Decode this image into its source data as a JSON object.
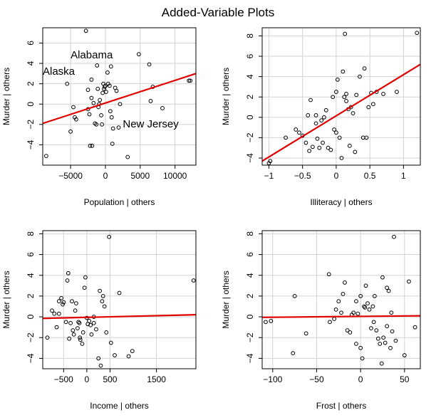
{
  "figure": {
    "title": "Added-Variable Plots"
  },
  "chart_data": [
    {
      "type": "scatter",
      "xlabel": "Population | others",
      "ylabel": "Murder  | others",
      "xlim": [
        -9000,
        13000
      ],
      "ylim": [
        -6,
        7.5
      ],
      "xticks": [
        -5000,
        0,
        5000,
        10000
      ],
      "yticks": [
        -4,
        -2,
        0,
        2,
        4,
        6
      ],
      "grid": true,
      "fit_line": {
        "color": "#e00000",
        "x": [
          -9000,
          13000
        ],
        "y": [
          -1.9,
          3.0
        ]
      },
      "annotations": [
        {
          "text": "Alabama",
          "x": -5000,
          "y": 4.5
        },
        {
          "text": "Alaska",
          "x": -9000,
          "y": 2.9
        },
        {
          "text": "New Jersey",
          "x": 2500,
          "y": -2.3
        }
      ],
      "points": [
        [
          -8500,
          -5.1
        ],
        [
          -5500,
          2.0
        ],
        [
          -5000,
          -2.7
        ],
        [
          -4600,
          -0.3
        ],
        [
          -4400,
          -1.3
        ],
        [
          -4200,
          -1.5
        ],
        [
          -2800,
          7.2
        ],
        [
          -2500,
          -0.5
        ],
        [
          -2300,
          -1.0
        ],
        [
          -2200,
          -4.1
        ],
        [
          -2000,
          2.4
        ],
        [
          -1900,
          -4.1
        ],
        [
          -1700,
          0.1
        ],
        [
          -1500,
          -1.9
        ],
        [
          -1200,
          3.8
        ],
        [
          -1100,
          1.5
        ],
        [
          -1000,
          -0.3
        ],
        [
          -900,
          0.0
        ],
        [
          -800,
          0.4
        ],
        [
          -600,
          -1.1
        ],
        [
          -500,
          -2.0
        ],
        [
          -400,
          1.1
        ],
        [
          -300,
          2.0
        ],
        [
          -200,
          1.5
        ],
        [
          -100,
          1.7
        ],
        [
          0,
          1.8
        ],
        [
          100,
          1.2
        ],
        [
          300,
          3.1
        ],
        [
          400,
          2.0
        ],
        [
          600,
          1.8
        ],
        [
          700,
          -0.7
        ],
        [
          800,
          3.7
        ],
        [
          900,
          -1.3
        ],
        [
          1000,
          -3.9
        ],
        [
          1100,
          -2.4
        ],
        [
          1400,
          1.6
        ],
        [
          1600,
          1.3
        ],
        [
          1900,
          -2.3
        ],
        [
          2100,
          0.0
        ],
        [
          3200,
          -5.2
        ],
        [
          4800,
          4.9
        ],
        [
          6300,
          3.9
        ],
        [
          6500,
          0.3
        ],
        [
          6800,
          1.7
        ],
        [
          8200,
          -0.4
        ],
        [
          12000,
          2.3
        ],
        [
          12200,
          2.3
        ],
        [
          -2500,
          1.4
        ],
        [
          -2000,
          0.6
        ],
        [
          -1300,
          -2.0
        ]
      ]
    },
    {
      "type": "scatter",
      "xlabel": "Illiteracy | others",
      "ylabel": "Murder  | others",
      "xlim": [
        -1.1,
        1.25
      ],
      "ylim": [
        -4.7,
        8.8
      ],
      "xticks": [
        -1.0,
        -0.5,
        0.0,
        0.5,
        1.0
      ],
      "yticks": [
        -4,
        -2,
        0,
        2,
        4,
        6,
        8
      ],
      "grid": true,
      "fit_line": {
        "color": "#e00000",
        "x": [
          -1.1,
          1.25
        ],
        "y": [
          -4.3,
          5.2
        ]
      },
      "annotations": [],
      "points": [
        [
          -1.0,
          -4.5
        ],
        [
          -0.98,
          -4.3
        ],
        [
          -0.75,
          -2.0
        ],
        [
          -0.6,
          -1.2
        ],
        [
          -0.55,
          -1.5
        ],
        [
          -0.5,
          -1.8
        ],
        [
          -0.45,
          -2.5
        ],
        [
          -0.42,
          0.2
        ],
        [
          -0.4,
          -3.3
        ],
        [
          -0.38,
          1.7
        ],
        [
          -0.35,
          -2.9
        ],
        [
          -0.3,
          0.2
        ],
        [
          -0.28,
          -2.1
        ],
        [
          -0.25,
          -3.0
        ],
        [
          -0.22,
          -0.3
        ],
        [
          -0.2,
          -2.5
        ],
        [
          -0.18,
          0.0
        ],
        [
          -0.12,
          -3.0
        ],
        [
          -0.08,
          -3.2
        ],
        [
          -0.05,
          2.0
        ],
        [
          -0.03,
          -1.2
        ],
        [
          0.0,
          -1.5
        ],
        [
          0.02,
          3.7
        ],
        [
          0.05,
          -2.0
        ],
        [
          0.08,
          -4.0
        ],
        [
          0.1,
          4.5
        ],
        [
          0.12,
          2.0
        ],
        [
          0.13,
          8.2
        ],
        [
          0.15,
          2.3
        ],
        [
          0.18,
          0.8
        ],
        [
          0.2,
          -2.8
        ],
        [
          0.22,
          1.0
        ],
        [
          0.25,
          0.4
        ],
        [
          0.28,
          -3.4
        ],
        [
          0.3,
          2.2
        ],
        [
          0.35,
          4.0
        ],
        [
          0.4,
          -2.0
        ],
        [
          0.42,
          4.8
        ],
        [
          0.45,
          -2.0
        ],
        [
          0.48,
          1.0
        ],
        [
          0.52,
          2.4
        ],
        [
          0.55,
          1.3
        ],
        [
          0.6,
          2.5
        ],
        [
          0.7,
          2.3
        ],
        [
          0.9,
          2.5
        ],
        [
          1.2,
          8.3
        ],
        [
          -0.15,
          0.7
        ],
        [
          0.0,
          2.5
        ],
        [
          0.15,
          1.6
        ],
        [
          -0.3,
          -0.6
        ]
      ]
    },
    {
      "type": "scatter",
      "xlabel": "Income | others",
      "ylabel": "Murder  | others",
      "xlim": [
        -950,
        2350
      ],
      "ylim": [
        -5.0,
        8.3
      ],
      "xticks": [
        -500,
        0,
        500,
        1500
      ],
      "yticks": [
        -4,
        -2,
        0,
        2,
        4,
        6,
        8
      ],
      "grid": true,
      "fit_line": {
        "color": "#e00000",
        "x": [
          -950,
          2350
        ],
        "y": [
          -0.15,
          0.2
        ]
      },
      "annotations": [],
      "points": [
        [
          -850,
          -2.0
        ],
        [
          -750,
          0.6
        ],
        [
          -700,
          0.3
        ],
        [
          -650,
          -1.0
        ],
        [
          -600,
          0.3
        ],
        [
          -550,
          1.8
        ],
        [
          -500,
          1.4
        ],
        [
          -450,
          -0.5
        ],
        [
          -420,
          3.5
        ],
        [
          -400,
          4.2
        ],
        [
          -380,
          -2.1
        ],
        [
          -350,
          -0.6
        ],
        [
          -320,
          1.5
        ],
        [
          -300,
          -1.3
        ],
        [
          -280,
          -1.7
        ],
        [
          -250,
          0.6
        ],
        [
          -230,
          1.3
        ],
        [
          -200,
          -1.1
        ],
        [
          -180,
          -0.5
        ],
        [
          -160,
          -0.6
        ],
        [
          -140,
          -2.2
        ],
        [
          -100,
          -2.6
        ],
        [
          -80,
          -1.5
        ],
        [
          -50,
          2.8
        ],
        [
          -30,
          3.8
        ],
        [
          0,
          -0.1
        ],
        [
          20,
          -0.7
        ],
        [
          50,
          -0.4
        ],
        [
          80,
          -0.8
        ],
        [
          100,
          -1.7
        ],
        [
          150,
          -0.6
        ],
        [
          200,
          -1.2
        ],
        [
          250,
          -4.0
        ],
        [
          280,
          2.5
        ],
        [
          300,
          -4.7
        ],
        [
          330,
          1.5
        ],
        [
          350,
          2.0
        ],
        [
          380,
          1.0
        ],
        [
          420,
          -1.5
        ],
        [
          480,
          7.7
        ],
        [
          520,
          -2.5
        ],
        [
          600,
          -3.7
        ],
        [
          700,
          2.3
        ],
        [
          900,
          -3.8
        ],
        [
          980,
          -3.3
        ],
        [
          2300,
          3.5
        ],
        [
          -520,
          1.2
        ],
        [
          -150,
          -2.0
        ],
        [
          150,
          0.0
        ],
        [
          -600,
          1.5
        ]
      ]
    },
    {
      "type": "scatter",
      "xlabel": "Frost | others",
      "ylabel": "Murder  | others",
      "xlim": [
        -112,
        68
      ],
      "ylim": [
        -5.0,
        8.3
      ],
      "xticks": [
        -100,
        -50,
        0,
        50
      ],
      "yticks": [
        -4,
        -2,
        0,
        2,
        4,
        6,
        8
      ],
      "grid": true,
      "fit_line": {
        "color": "#e00000",
        "x": [
          -112,
          68
        ],
        "y": [
          -0.05,
          0.1
        ]
      },
      "annotations": [],
      "points": [
        [
          -108,
          -0.5
        ],
        [
          -102,
          -0.4
        ],
        [
          -77,
          -3.5
        ],
        [
          -75,
          2.0
        ],
        [
          -62,
          -1.6
        ],
        [
          -36,
          4.1
        ],
        [
          -35,
          -0.5
        ],
        [
          -30,
          -0.2
        ],
        [
          -28,
          0.7
        ],
        [
          -25,
          1.5
        ],
        [
          -22,
          0.4
        ],
        [
          -20,
          2.2
        ],
        [
          -18,
          3.3
        ],
        [
          -15,
          -1.3
        ],
        [
          -12,
          -1.5
        ],
        [
          -10,
          0.2
        ],
        [
          -8,
          0.4
        ],
        [
          -5,
          -2.6
        ],
        [
          -3,
          0.3
        ],
        [
          0,
          -3.0
        ],
        [
          0,
          2.0
        ],
        [
          2,
          -4.0
        ],
        [
          4,
          1.0
        ],
        [
          6,
          3.0
        ],
        [
          8,
          1.3
        ],
        [
          10,
          0.7
        ],
        [
          12,
          -1.1
        ],
        [
          14,
          1.0
        ],
        [
          16,
          2.0
        ],
        [
          18,
          -1.3
        ],
        [
          20,
          -2.1
        ],
        [
          22,
          -2.6
        ],
        [
          24,
          -4.5
        ],
        [
          25,
          3.8
        ],
        [
          26,
          -2.0
        ],
        [
          28,
          -2.5
        ],
        [
          30,
          2.8
        ],
        [
          32,
          2.5
        ],
        [
          34,
          -3.0
        ],
        [
          35,
          0.4
        ],
        [
          36,
          -1.4
        ],
        [
          38,
          7.7
        ],
        [
          40,
          -2.3
        ],
        [
          50,
          -3.7
        ],
        [
          55,
          3.4
        ],
        [
          62,
          -1.0
        ],
        [
          -5,
          1.5
        ],
        [
          5,
          0.9
        ],
        [
          15,
          -0.5
        ],
        [
          30,
          -0.9
        ]
      ]
    }
  ]
}
